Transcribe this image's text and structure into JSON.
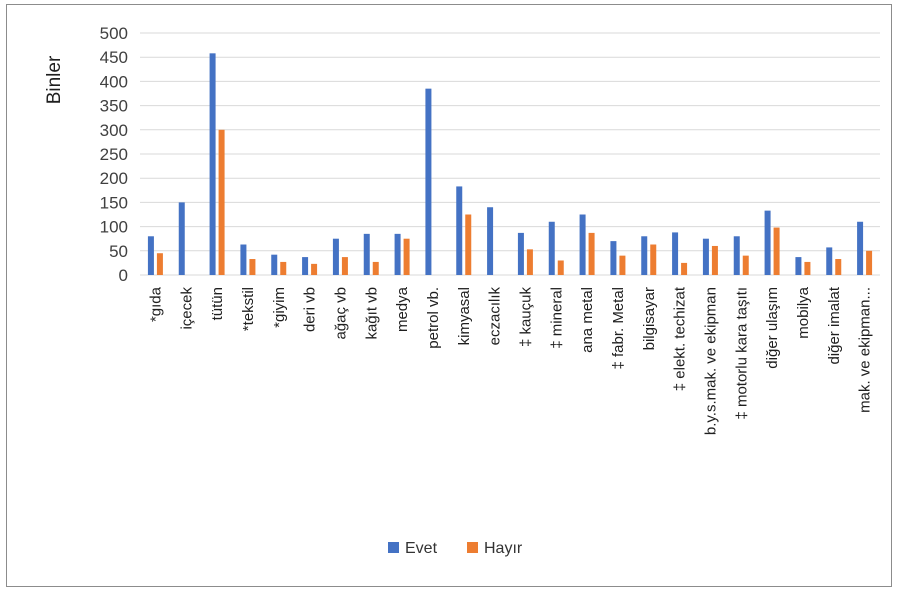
{
  "chart_data": {
    "type": "bar",
    "ylabel": "Binler",
    "ylim": [
      0,
      500
    ],
    "yticks": [
      0,
      50,
      100,
      150,
      200,
      250,
      300,
      350,
      400,
      450,
      500
    ],
    "grid": true,
    "legend_position": "bottom",
    "categories": [
      "*gıda",
      "içecek",
      "tütün",
      "*tekstil",
      "*giyim",
      "deri vb",
      "ağaç vb",
      "kağıt vb",
      "medya",
      "petrol vb.",
      "kimyasal",
      "eczacılık",
      "‡ kauçuk",
      "‡ mineral",
      "ana metal",
      "‡ fabr. Metal",
      "bilgisayar",
      "‡ elekt. techizat",
      "b.y.s.mak. ve ekipman",
      "‡ motorlu kara taşıtı",
      "diğer ulaşım",
      "mobilya",
      "diğer imalat",
      "mak. ve ekipman..."
    ],
    "series": [
      {
        "name": "Evet",
        "color": "#4472C4",
        "values": [
          80,
          150,
          458,
          63,
          42,
          37,
          75,
          85,
          85,
          385,
          183,
          140,
          87,
          110,
          125,
          70,
          80,
          88,
          75,
          80,
          133,
          37,
          57,
          110
        ]
      },
      {
        "name": "Hayır",
        "color": "#ED7D31",
        "values": [
          45,
          0,
          300,
          33,
          27,
          23,
          37,
          27,
          75,
          0,
          125,
          0,
          53,
          30,
          87,
          40,
          63,
          25,
          60,
          40,
          98,
          27,
          33,
          50
        ]
      }
    ]
  }
}
